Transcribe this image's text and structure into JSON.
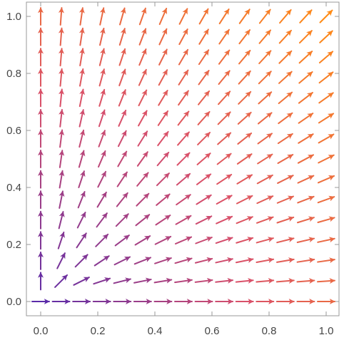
{
  "chart_data": {
    "type": "vector_field",
    "title": "",
    "xlabel": "",
    "ylabel": "",
    "xlim": [
      -0.05,
      1.05
    ],
    "ylim": [
      -0.05,
      1.05
    ],
    "x_ticks": [
      "0.0",
      "0.2",
      "0.4",
      "0.6",
      "0.8",
      "1.0"
    ],
    "y_ticks": [
      "0.0",
      "0.2",
      "0.4",
      "0.6",
      "0.8",
      "1.0"
    ],
    "x_tick_values": [
      0,
      0.2,
      0.4,
      0.6,
      0.8,
      1.0
    ],
    "y_tick_values": [
      0,
      0.2,
      0.4,
      0.6,
      0.8,
      1.0
    ],
    "field": {
      "u": "1",
      "v": "y/x"
    },
    "grid_n": 15,
    "grid_range": [
      0,
      1
    ],
    "colormap": {
      "low": "#5a2aa8",
      "mid": "#d9506a",
      "high": "#ff8a14",
      "by": "magnitude"
    },
    "grid": false,
    "legend": "none"
  }
}
